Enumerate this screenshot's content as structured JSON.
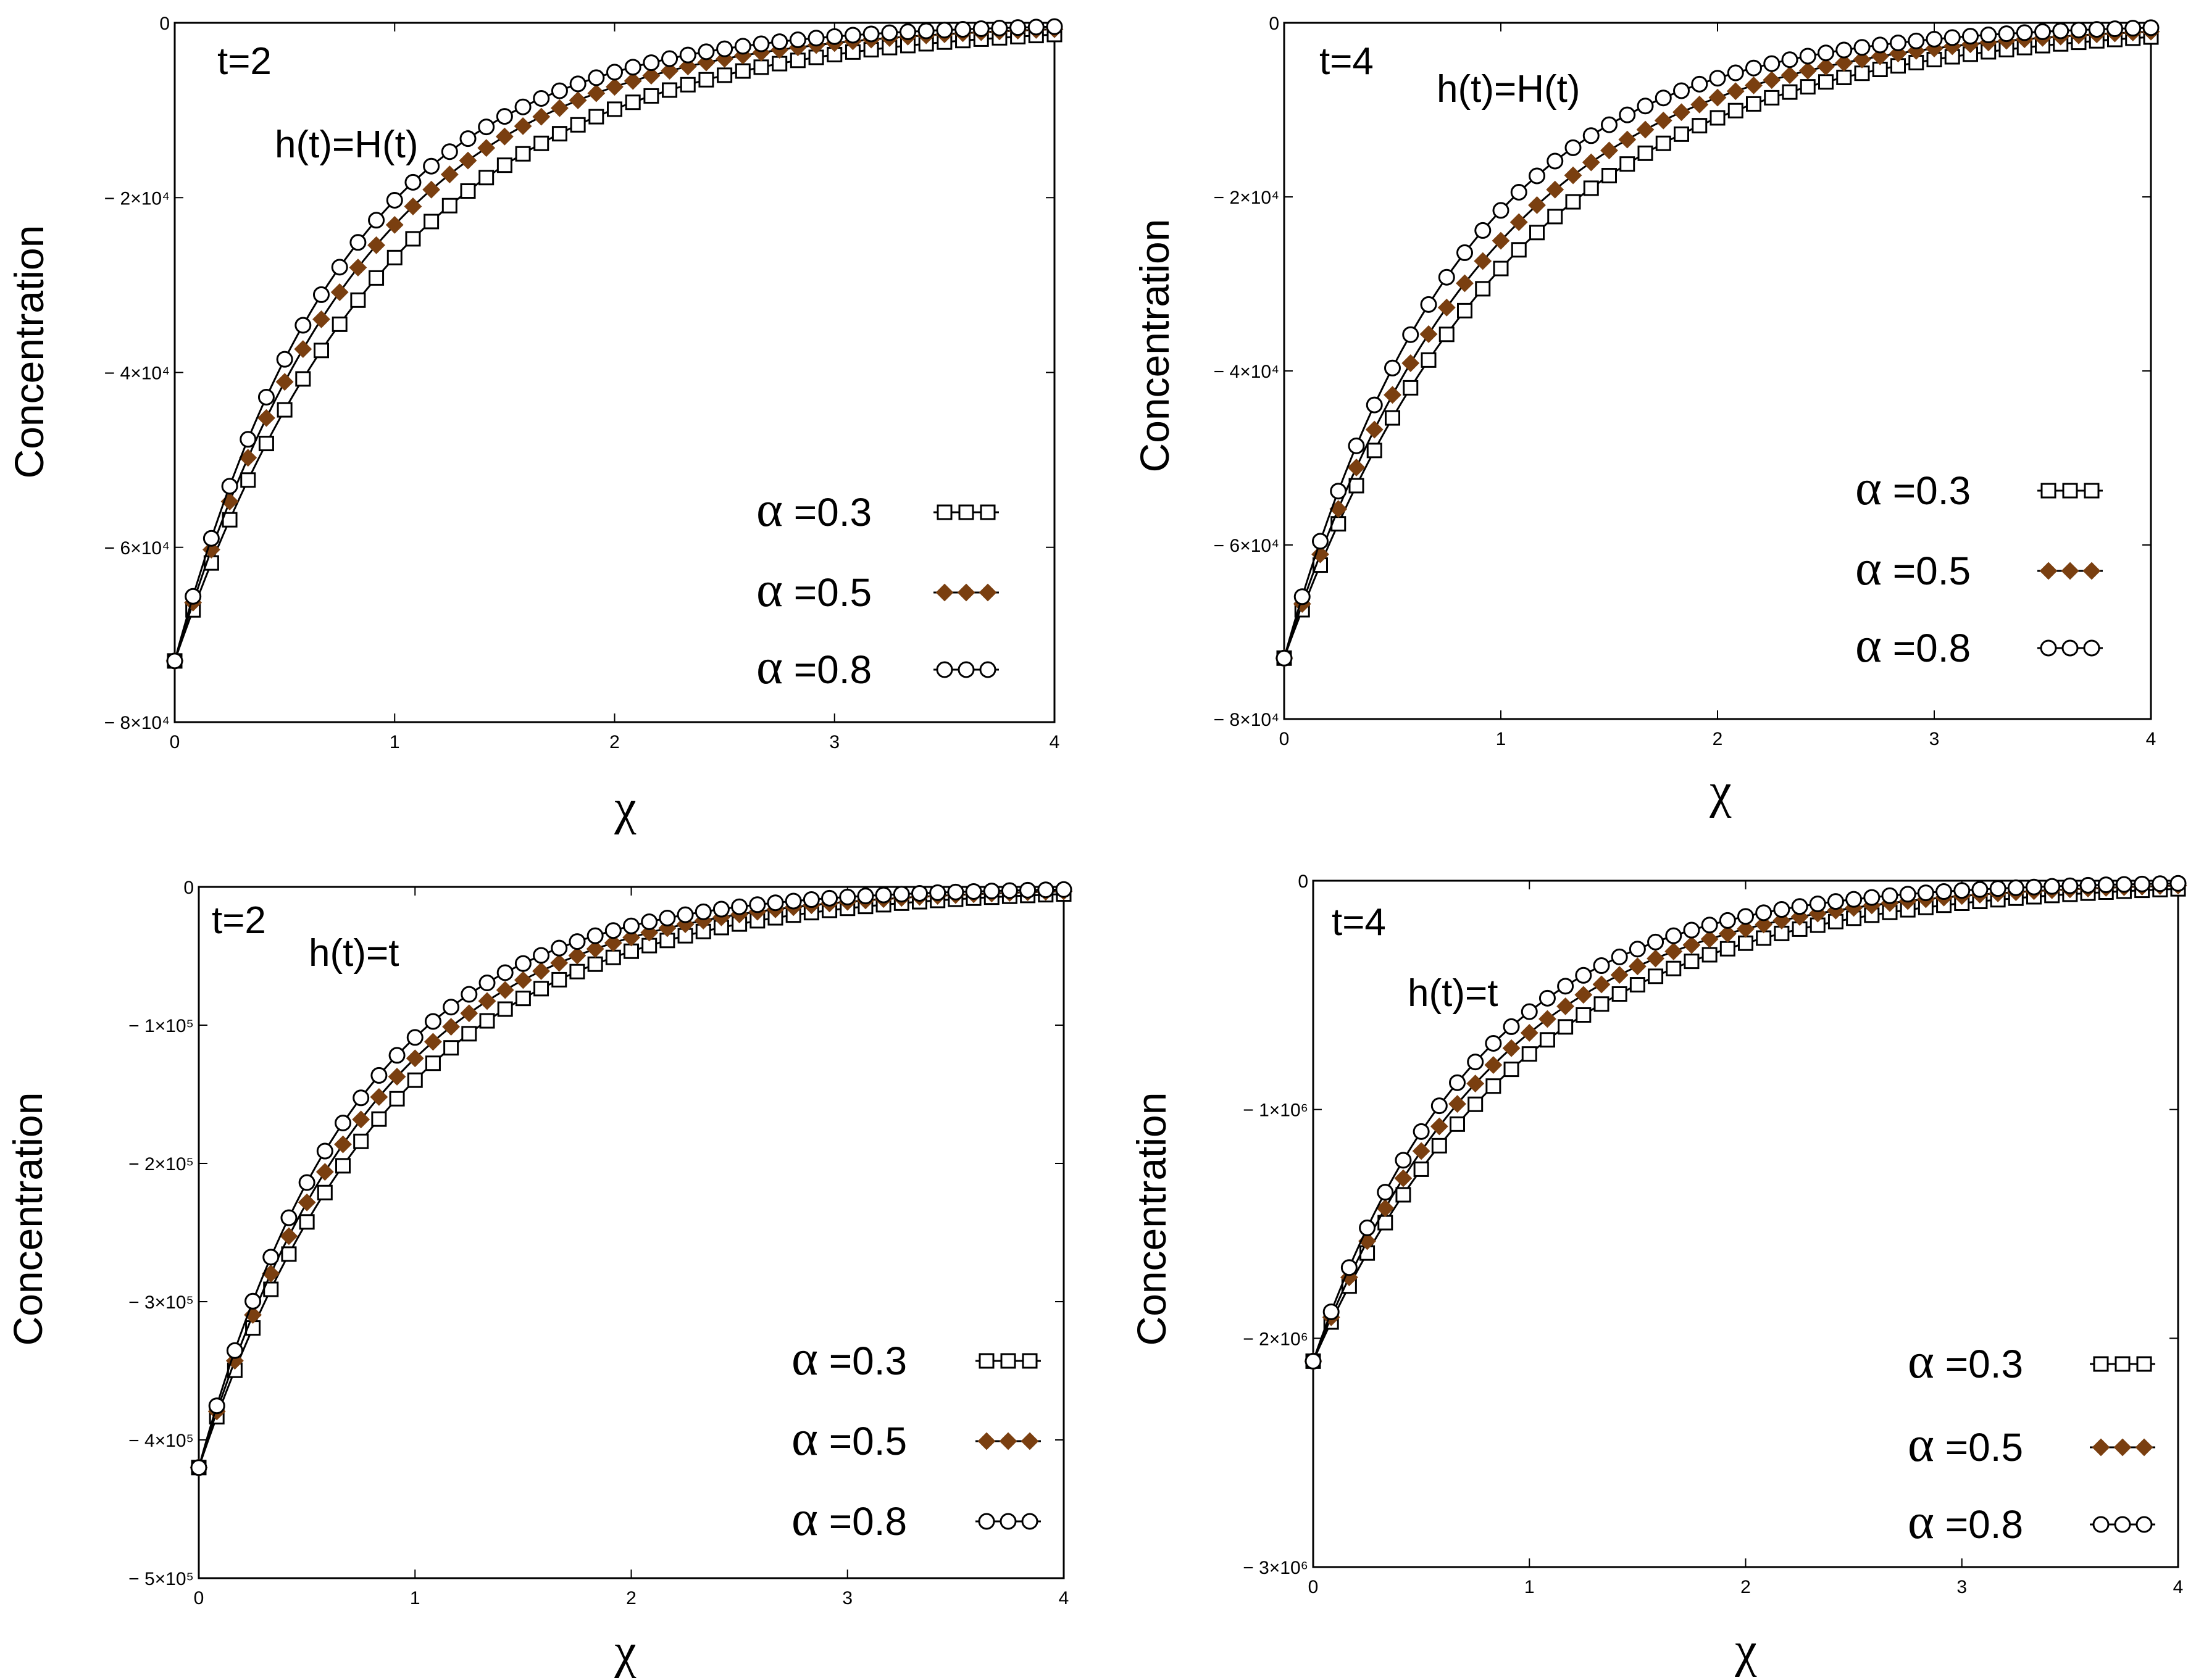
{
  "figure": {
    "caption": ""
  },
  "colors": {
    "axis": "#000000",
    "line": "#000000",
    "filled_marker": "#7a3f10"
  },
  "chart_data": [
    {
      "type": "line",
      "panel": "top-left",
      "time_label": "t=2",
      "h_label": "h(t)=H(t)",
      "xlabel": "χ",
      "ylabel": "Concentration",
      "xlim": [
        0,
        4
      ],
      "ylim": [
        -80000,
        0
      ],
      "xticks": [
        0,
        1,
        2,
        3,
        4
      ],
      "xtick_labels": [
        "0",
        "1",
        "2",
        "3",
        "4"
      ],
      "yticks": [
        0,
        -20000,
        -40000,
        -60000,
        -80000
      ],
      "ytick_labels": [
        "0",
        "− 2×10⁴",
        "− 4×10⁴",
        "− 6×10⁴",
        "− 8×10⁴"
      ],
      "grid": false,
      "legend_position": "bottom-right",
      "y0": -73000,
      "series": [
        {
          "name": "α =0.3",
          "alpha_symbol": "α",
          "label_rest": " =0.3",
          "marker": "square",
          "k": 1.0
        },
        {
          "name": "α =0.5",
          "alpha_symbol": "α",
          "label_rest": " =0.5",
          "marker": "filled-diamond",
          "k": 1.15
        },
        {
          "name": "α =0.8",
          "alpha_symbol": "α",
          "label_rest": " =0.8",
          "marker": "circle",
          "k": 1.28
        }
      ]
    },
    {
      "type": "line",
      "panel": "top-right",
      "time_label": "t=4",
      "h_label": "h(t)=H(t)",
      "xlabel": "χ",
      "ylabel": "Concentration",
      "xlim": [
        0,
        4
      ],
      "ylim": [
        -80000,
        0
      ],
      "xticks": [
        0,
        1,
        2,
        3,
        4
      ],
      "xtick_labels": [
        "0",
        "1",
        "2",
        "3",
        "4"
      ],
      "yticks": [
        0,
        -20000,
        -40000,
        -60000,
        -80000
      ],
      "ytick_labels": [
        "0",
        "− 2×10⁴",
        "− 4×10⁴",
        "− 6×10⁴",
        "− 8×10⁴"
      ],
      "grid": false,
      "legend_position": "bottom-right",
      "y0": -73000,
      "series": [
        {
          "name": "α =0.3",
          "alpha_symbol": "α",
          "label_rest": " =0.3",
          "marker": "square",
          "k": 0.95
        },
        {
          "name": "α =0.5",
          "alpha_symbol": "α",
          "label_rest": " =0.5",
          "marker": "filled-diamond",
          "k": 1.07
        },
        {
          "name": "α =0.8",
          "alpha_symbol": "α",
          "label_rest": " =0.8",
          "marker": "circle",
          "k": 1.22
        }
      ]
    },
    {
      "type": "line",
      "panel": "bottom-left",
      "time_label": "t=2",
      "h_label": "h(t)=t",
      "xlabel": "χ",
      "ylabel": "Concentration",
      "xlim": [
        0,
        4
      ],
      "ylim": [
        -500000,
        0
      ],
      "xticks": [
        0,
        1,
        2,
        3,
        4
      ],
      "xtick_labels": [
        "0",
        "1",
        "2",
        "3",
        "4"
      ],
      "yticks": [
        0,
        -100000,
        -200000,
        -300000,
        -400000,
        -500000
      ],
      "ytick_labels": [
        "0",
        "− 1×10⁵",
        "− 2×10⁵",
        "− 3×10⁵",
        "− 4×10⁵",
        "− 5×10⁵"
      ],
      "grid": false,
      "legend_position": "bottom-right",
      "y0": -420000,
      "series": [
        {
          "name": "α =0.3",
          "alpha_symbol": "α",
          "label_rest": " =0.3",
          "marker": "square",
          "k": 1.1
        },
        {
          "name": "α =0.5",
          "alpha_symbol": "α",
          "label_rest": " =0.5",
          "marker": "filled-diamond",
          "k": 1.22
        },
        {
          "name": "α =0.8",
          "alpha_symbol": "α",
          "label_rest": " =0.8",
          "marker": "circle",
          "k": 1.35
        }
      ]
    },
    {
      "type": "line",
      "panel": "bottom-right",
      "time_label": "t=4",
      "h_label": "h(t)=t",
      "xlabel": "χ",
      "ylabel": "Concentration",
      "xlim": [
        0,
        4
      ],
      "ylim": [
        -3000000,
        0
      ],
      "xticks": [
        0,
        1,
        2,
        3,
        4
      ],
      "xtick_labels": [
        "0",
        "1",
        "2",
        "3",
        "4"
      ],
      "yticks": [
        0,
        -1000000,
        -2000000,
        -3000000
      ],
      "ytick_labels": [
        "0",
        "− 1×10⁶",
        "− 2×10⁶",
        "− 3×10⁶"
      ],
      "grid": false,
      "legend_position": "bottom-right",
      "y0": -2100000,
      "series": [
        {
          "name": "α =0.3",
          "alpha_symbol": "α",
          "label_rest": " =0.3",
          "marker": "square",
          "k": 1.02
        },
        {
          "name": "α =0.5",
          "alpha_symbol": "α",
          "label_rest": " =0.5",
          "marker": "filled-diamond",
          "k": 1.15
        },
        {
          "name": "α =0.8",
          "alpha_symbol": "α",
          "label_rest": " =0.8",
          "marker": "circle",
          "k": 1.3
        }
      ]
    }
  ]
}
